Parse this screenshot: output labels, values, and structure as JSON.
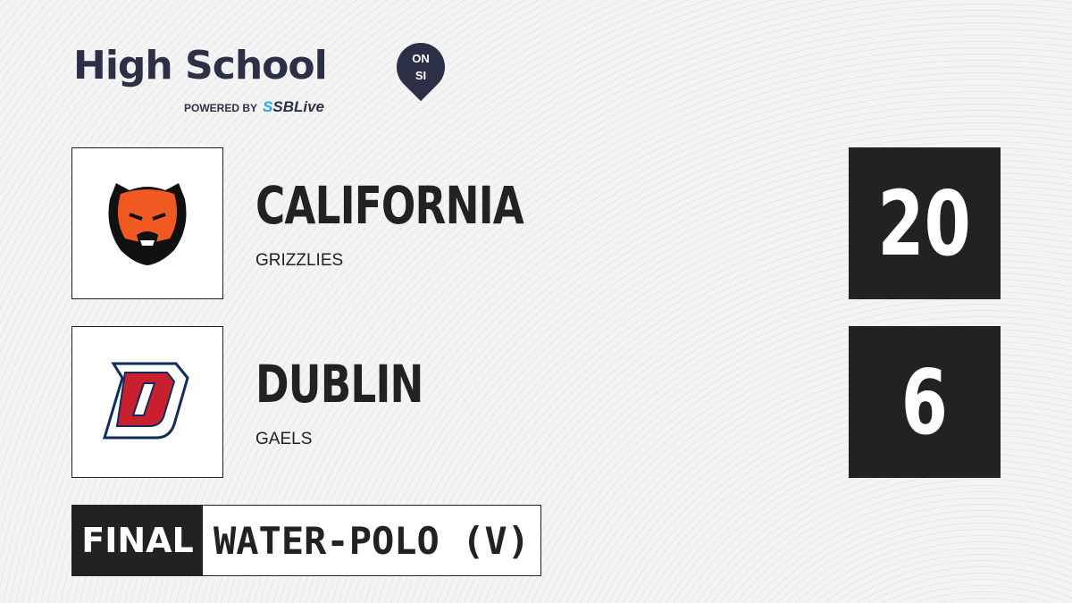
{
  "brand": {
    "title": "High School",
    "badge_top": "ON",
    "badge_bottom": "SI",
    "powered_by": "POWERED BY",
    "partner_prefix": "S",
    "partner": "SBLive"
  },
  "teams": [
    {
      "name": "CALIFORNIA",
      "mascot": "GRIZZLIES",
      "score": "20",
      "logo": "grizzly-bear-logo"
    },
    {
      "name": "DUBLIN",
      "mascot": "GAELS",
      "score": "6",
      "logo": "letter-d-logo"
    }
  ],
  "status": "FINAL",
  "sport": "WATER-POLO (V)"
}
